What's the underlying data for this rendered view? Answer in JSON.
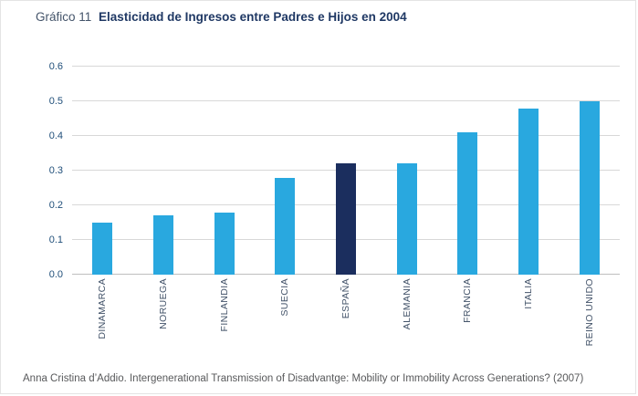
{
  "header": {
    "prefix": "Gráfico 11",
    "title": "Elasticidad de Ingresos entre Padres e Hijos en 2004"
  },
  "caption": "Anna Cristina d’Addio. Intergenerational Transmission of Disadvantge: Mobility or Immobility Across Generations? (2007)",
  "chart_data": {
    "type": "bar",
    "title": "Gráfico 11 Elasticidad de Ingresos entre Padres e Hijos en 2004",
    "categories": [
      "DINAMARCA",
      "NORUEGA",
      "FINLANDIA",
      "SUECIA",
      "ESPAÑA",
      "ALEMANIA",
      "FRANCIA",
      "ITALIA",
      "REINO UNIDO"
    ],
    "values": [
      0.15,
      0.17,
      0.18,
      0.28,
      0.32,
      0.32,
      0.41,
      0.48,
      0.5
    ],
    "highlight_index": 4,
    "bar_color": "#29a8df",
    "highlight_color": "#1b2e5e",
    "ylim": [
      0,
      0.6
    ],
    "ytick_step": 0.1,
    "ytick_format_decimals": 1,
    "grid": true,
    "legend": false,
    "xlabel": "",
    "ylabel": ""
  }
}
